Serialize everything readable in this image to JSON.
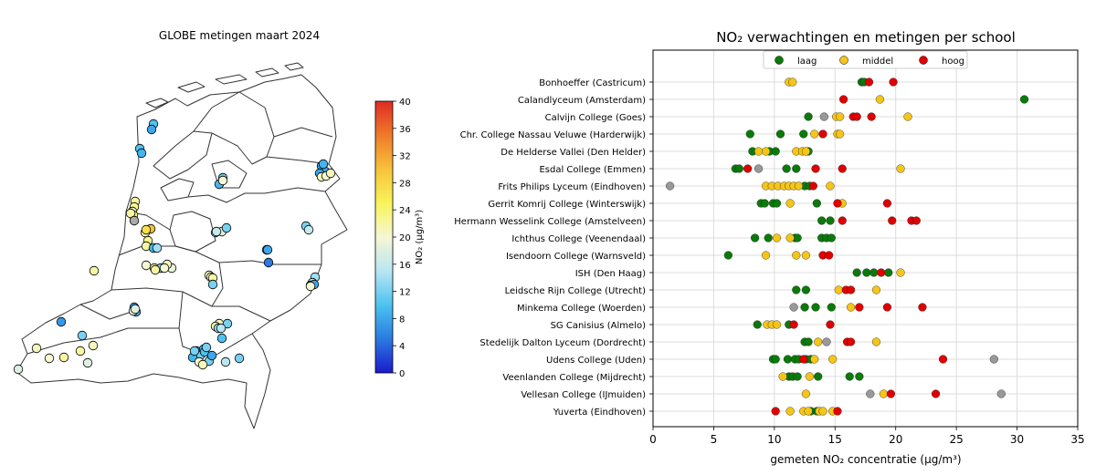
{
  "map_panel": {
    "title": "GLOBE metingen maart 2024",
    "colorbar": {
      "label": "NO₂ (μg/m³)",
      "ticks": [
        "0",
        "4",
        "8",
        "12",
        "16",
        "20",
        "24",
        "28",
        "32",
        "36",
        "40"
      ],
      "min": 0,
      "max": 40,
      "colormap": [
        "#1a1acc",
        "#2a7be0",
        "#4cc3f0",
        "#b9e6f2",
        "#f6f7d4",
        "#f9f45a",
        "#f7c23a",
        "#f07a2a",
        "#dc2d23"
      ]
    },
    "points": [
      {
        "v": 10
      },
      {
        "v": 8
      },
      {
        "v": 10
      },
      {
        "v": 9
      },
      {
        "v": 9
      },
      {
        "v": 11
      },
      {
        "v": 20
      },
      {
        "v": 8
      },
      {
        "v": 8
      },
      {
        "v": 8
      },
      {
        "v": 21
      },
      {
        "v": 20
      },
      {
        "v": 21
      },
      {
        "v": 9
      },
      {
        "v": 7
      },
      {
        "v": 22
      },
      {
        "v": 23
      },
      {
        "v": 21
      },
      {
        "v": 24
      },
      {
        "v": 22
      },
      {
        "v": null
      },
      {
        "v": 21
      },
      {
        "v": 30
      },
      {
        "v": 27
      },
      {
        "v": 23
      },
      {
        "v": 22
      },
      {
        "v": 9
      },
      {
        "v": 14
      },
      {
        "v": 22
      },
      {
        "v": 20
      },
      {
        "v": 22
      },
      {
        "v": 12
      },
      {
        "v": 22
      },
      {
        "v": 21
      },
      {
        "v": 19
      },
      {
        "v": 21
      },
      {
        "v": 20
      },
      {
        "v": 21
      },
      {
        "v": 20
      },
      {
        "v": 22
      },
      {
        "v": 12
      },
      {
        "v": 13
      },
      {
        "v": 18
      },
      {
        "v": 16
      },
      {
        "v": 12
      },
      {
        "v": 8
      },
      {
        "v": 5
      },
      {
        "v": 12
      },
      {
        "v": 16
      },
      {
        "v": 14
      },
      {
        "v": 15
      },
      {
        "v": 9
      },
      {
        "v": 8
      },
      {
        "v": 20
      },
      {
        "v": 7
      },
      {
        "v": 8
      },
      {
        "v": 20
      },
      {
        "v": 18
      },
      {
        "v": 21
      },
      {
        "v": 22
      },
      {
        "v": 13
      },
      {
        "v": 10
      },
      {
        "v": 12
      },
      {
        "v": 9
      },
      {
        "v": 9
      },
      {
        "v": 12
      },
      {
        "v": 20
      },
      {
        "v": 21
      },
      {
        "v": 18
      },
      {
        "v": 21
      },
      {
        "v": 20
      },
      {
        "v": 22
      },
      {
        "v": 22
      },
      {
        "v": 21
      },
      {
        "v": 12
      },
      {
        "v": 18
      },
      {
        "v": 12
      },
      {
        "v": 10
      },
      {
        "v": 12
      },
      {
        "v": 15
      },
      {
        "v": 10
      },
      {
        "v": 12
      },
      {
        "v": 12
      },
      {
        "v": 8
      },
      {
        "v": 15
      },
      {
        "v": 7
      }
    ]
  },
  "chart_data": {
    "type": "scatter",
    "title": "NO₂ verwachtingen en metingen per school",
    "xlabel": "gemeten NO₂ concentratie (μg/m³)",
    "ylabel": "",
    "xlim": [
      0,
      35
    ],
    "xticks": [
      0,
      5,
      10,
      15,
      20,
      25,
      30,
      35
    ],
    "grid": true,
    "legend": {
      "placement": "top-center",
      "entries": [
        {
          "name": "laag",
          "color": "#0a7a0a"
        },
        {
          "name": "middel",
          "color": "#f5c518"
        },
        {
          "name": "hoog",
          "color": "#e00000"
        }
      ]
    },
    "unlabeled_color": "#999999",
    "categories": [
      "Bonhoeffer (Castricum)",
      "Calandlyceum (Amsterdam)",
      "Calvijn College (Goes)",
      "Chr. College Nassau Veluwe (Harderwijk)",
      "De Helderse Vallei (Den Helder)",
      "Esdal College (Emmen)",
      "Frits Philips Lyceum (Eindhoven)",
      "Gerrit Komrij College (Winterswijk)",
      "Hermann Wesselink College (Amstelveen)",
      "Ichthus College (Veenendaal)",
      "Isendoorn College (Warnsveld)",
      "ISH (Den Haag)",
      "Leidsche Rijn College (Utrecht)",
      "Minkema College (Woerden)",
      "SG Canisius (Almelo)",
      "Stedelijk Dalton Lyceum (Dordrecht)",
      "Udens College (Uden)",
      "Veenlanden College (Mijdrecht)",
      "Vellesan College (IJmuiden)",
      "Yuverta (Eindhoven)"
    ],
    "series": [
      {
        "name": "laag",
        "color": "#0a7a0a",
        "x": [
          [
            17.2,
            17.4
          ],
          [
            30.6
          ],
          [
            12.8
          ],
          [
            8.0,
            10.5,
            12.4
          ],
          [
            8.2,
            9.6,
            10.1,
            12.8
          ],
          [
            6.8,
            7.1,
            11.0,
            11.8
          ],
          [
            12.5,
            12.9
          ],
          [
            8.9,
            9.2,
            9.9,
            10.2,
            13.5
          ],
          [
            13.9,
            14.6
          ],
          [
            8.4,
            9.5,
            11.7,
            11.9,
            13.9,
            14.3,
            14.7
          ],
          [
            6.2
          ],
          [
            16.8,
            17.6,
            18.2,
            19.4
          ],
          [
            11.8,
            12.6
          ],
          [
            12.5,
            13.4,
            14.7
          ],
          [
            8.6,
            11.2
          ],
          [
            12.5,
            12.8
          ],
          [
            9.9,
            10.1,
            11.1,
            11.7,
            12.0,
            12.6,
            13.0
          ],
          [
            11.2,
            11.5,
            11.9,
            13.6,
            16.2,
            17.0
          ],
          [],
          [
            13.0,
            13.5
          ]
        ]
      },
      {
        "name": "middel",
        "color": "#f5c518",
        "x": [
          [
            11.2,
            11.5
          ],
          [
            18.7
          ],
          [
            15.1,
            15.4,
            21.0
          ],
          [
            13.3,
            15.2,
            15.4
          ],
          [
            8.7,
            9.3,
            11.8,
            12.3,
            12.6
          ],
          [
            20.4
          ],
          [
            9.3,
            9.8,
            10.3,
            10.8,
            11.2,
            11.6,
            12.0,
            14.6
          ],
          [
            11.3,
            15.6
          ],
          [],
          [
            10.2,
            11.3
          ],
          [
            9.3,
            11.8,
            12.6
          ],
          [
            20.4
          ],
          [
            15.3,
            18.4
          ],
          [
            16.3
          ],
          [
            9.4,
            9.8,
            10.2
          ],
          [
            13.6,
            18.4
          ],
          [
            13.3,
            14.8
          ],
          [
            10.7,
            12.9
          ],
          [
            12.6,
            19.0
          ],
          [
            11.3,
            12.4,
            12.8,
            13.7,
            14.0,
            14.8
          ]
        ]
      },
      {
        "name": "hoog",
        "color": "#e00000",
        "x": [
          [
            17.8,
            19.8
          ],
          [
            15.7
          ],
          [
            16.5,
            16.8,
            18.0
          ],
          [
            14.0
          ],
          [],
          [
            7.8,
            13.4,
            15.6
          ],
          [
            13.2
          ],
          [
            15.2,
            19.3
          ],
          [
            15.6,
            19.7,
            21.3,
            21.7
          ],
          [],
          [
            14.0,
            14.5
          ],
          [
            18.8
          ],
          [
            15.9,
            16.3
          ],
          [
            17.0,
            19.3,
            22.2
          ],
          [
            11.6,
            14.6
          ],
          [
            16.0,
            16.3
          ],
          [
            12.4,
            23.9
          ],
          [],
          [
            19.6,
            23.3
          ],
          [
            10.1,
            15.2
          ]
        ]
      },
      {
        "name": "",
        "color": "#999999",
        "x": [
          [],
          [],
          [
            14.1
          ],
          [],
          [],
          [
            8.7
          ],
          [
            1.4
          ],
          [],
          [],
          [],
          [],
          [],
          [],
          [
            11.6
          ],
          [],
          [
            14.3
          ],
          [
            28.1
          ],
          [],
          [
            17.9,
            28.7
          ],
          []
        ]
      }
    ]
  }
}
